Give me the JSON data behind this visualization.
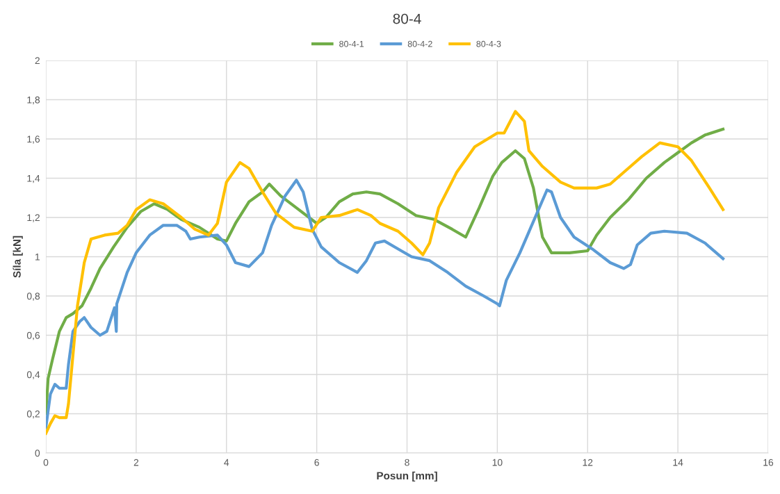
{
  "chart_data": {
    "type": "line",
    "title": "80-4",
    "xlabel": "Posun [mm]",
    "ylabel": "Síla [kN]",
    "xlim": [
      0,
      16
    ],
    "xticks": [
      0,
      2,
      4,
      6,
      8,
      10,
      12,
      14,
      16
    ],
    "ylim": [
      0,
      2
    ],
    "yticks": [
      0,
      {
        "value": 0.2,
        "label": "0,2"
      },
      {
        "value": 0.4,
        "label": "0,4"
      },
      {
        "value": 0.6,
        "label": "0,6"
      },
      {
        "value": 0.8,
        "label": "0,8"
      },
      1,
      {
        "value": 1.2,
        "label": "1,2"
      },
      {
        "value": 1.4,
        "label": "1,4"
      },
      {
        "value": 1.6,
        "label": "1,6"
      },
      {
        "value": 1.8,
        "label": "1,8"
      },
      2
    ],
    "grid": true,
    "legend": "top",
    "marker": "none",
    "line_style": "solid",
    "series": [
      {
        "name": "80-4-1",
        "color": "#70ad47",
        "x": [
          0,
          0.05,
          0.15,
          0.3,
          0.45,
          0.6,
          0.8,
          1.0,
          1.2,
          1.5,
          1.8,
          2.1,
          2.4,
          2.7,
          3.0,
          3.4,
          3.8,
          4.0,
          4.2,
          4.5,
          4.8,
          4.95,
          5.2,
          5.6,
          6.0,
          6.2,
          6.5,
          6.8,
          7.1,
          7.4,
          7.8,
          8.2,
          8.6,
          9.0,
          9.3,
          9.6,
          9.9,
          10.1,
          10.4,
          10.6,
          10.8,
          11.0,
          11.2,
          11.6,
          12.0,
          12.2,
          12.5,
          12.9,
          13.3,
          13.7,
          14.0,
          14.3,
          14.6,
          15.0
        ],
        "values": [
          0.2,
          0.38,
          0.48,
          0.62,
          0.69,
          0.71,
          0.75,
          0.84,
          0.94,
          1.05,
          1.15,
          1.23,
          1.27,
          1.24,
          1.19,
          1.15,
          1.09,
          1.08,
          1.17,
          1.28,
          1.33,
          1.37,
          1.31,
          1.24,
          1.17,
          1.2,
          1.28,
          1.32,
          1.33,
          1.32,
          1.27,
          1.21,
          1.19,
          1.14,
          1.1,
          1.25,
          1.41,
          1.48,
          1.54,
          1.5,
          1.35,
          1.1,
          1.02,
          1.02,
          1.03,
          1.11,
          1.2,
          1.29,
          1.4,
          1.48,
          1.53,
          1.58,
          1.62,
          1.65
        ]
      },
      {
        "name": "80-4-2",
        "color": "#5b9bd5",
        "x": [
          0,
          0.1,
          0.2,
          0.3,
          0.45,
          0.5,
          0.6,
          0.75,
          0.85,
          1.0,
          1.2,
          1.35,
          1.52,
          1.56,
          1.57,
          1.8,
          2.0,
          2.3,
          2.6,
          2.9,
          3.1,
          3.2,
          3.4,
          3.8,
          4.0,
          4.2,
          4.5,
          4.8,
          5.0,
          5.3,
          5.55,
          5.7,
          5.9,
          6.1,
          6.5,
          6.9,
          7.1,
          7.3,
          7.5,
          7.8,
          8.1,
          8.5,
          8.9,
          9.3,
          9.7,
          10.0,
          10.05,
          10.2,
          10.5,
          10.8,
          11.1,
          11.2,
          11.4,
          11.7,
          12.1,
          12.5,
          12.8,
          12.95,
          13.1,
          13.4,
          13.7,
          14.2,
          14.6,
          15.0
        ],
        "values": [
          0.13,
          0.3,
          0.35,
          0.33,
          0.33,
          0.45,
          0.62,
          0.67,
          0.69,
          0.64,
          0.6,
          0.62,
          0.74,
          0.62,
          0.76,
          0.92,
          1.02,
          1.11,
          1.16,
          1.16,
          1.13,
          1.09,
          1.1,
          1.11,
          1.06,
          0.97,
          0.95,
          1.02,
          1.16,
          1.31,
          1.39,
          1.33,
          1.14,
          1.05,
          0.97,
          0.92,
          0.98,
          1.07,
          1.08,
          1.04,
          1.0,
          0.98,
          0.92,
          0.85,
          0.8,
          0.76,
          0.75,
          0.88,
          1.02,
          1.18,
          1.34,
          1.33,
          1.2,
          1.1,
          1.04,
          0.97,
          0.94,
          0.96,
          1.06,
          1.12,
          1.13,
          1.12,
          1.07,
          0.99
        ]
      },
      {
        "name": "80-4-3",
        "color": "#ffc000",
        "x": [
          0,
          0.1,
          0.2,
          0.3,
          0.45,
          0.5,
          0.6,
          0.7,
          0.85,
          1.0,
          1.3,
          1.6,
          1.8,
          2.0,
          2.3,
          2.6,
          3.0,
          3.3,
          3.6,
          3.8,
          4.0,
          4.3,
          4.5,
          4.8,
          5.1,
          5.5,
          5.9,
          6.1,
          6.5,
          6.9,
          7.2,
          7.4,
          7.8,
          8.1,
          8.35,
          8.5,
          8.7,
          9.1,
          9.5,
          10.0,
          10.15,
          10.4,
          10.6,
          10.7,
          11.0,
          11.4,
          11.7,
          12.2,
          12.5,
          12.8,
          13.2,
          13.6,
          14.0,
          14.3,
          14.7,
          15.0
        ],
        "values": [
          0.1,
          0.15,
          0.19,
          0.18,
          0.18,
          0.25,
          0.5,
          0.75,
          0.97,
          1.09,
          1.11,
          1.12,
          1.16,
          1.24,
          1.29,
          1.27,
          1.2,
          1.14,
          1.11,
          1.17,
          1.38,
          1.48,
          1.45,
          1.33,
          1.22,
          1.15,
          1.13,
          1.2,
          1.21,
          1.24,
          1.21,
          1.17,
          1.13,
          1.07,
          1.01,
          1.07,
          1.25,
          1.43,
          1.56,
          1.63,
          1.63,
          1.74,
          1.69,
          1.54,
          1.46,
          1.38,
          1.35,
          1.35,
          1.37,
          1.43,
          1.51,
          1.58,
          1.56,
          1.49,
          1.35,
          1.24
        ]
      }
    ]
  }
}
